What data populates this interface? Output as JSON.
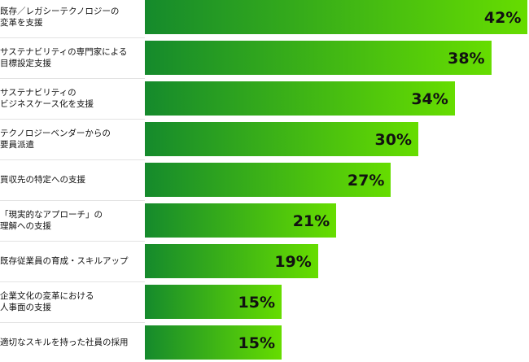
{
  "chart_data": {
    "type": "bar",
    "orientation": "horizontal",
    "categories": [
      "既存／レガシーテクノロジーの\n変革を支援",
      "サステナビリティの専門家による\n目標設定支援",
      "サステナビリティの\nビジネスケース化を支援",
      "テクノロジーベンダーからの\n要員派遣",
      "買収先の特定への支援",
      "「現実的なアプローチ」の\n理解への支援",
      "既存従業員の育成・スキルアップ",
      "企業文化の変革における\n人事面の支援",
      "適切なスキルを持った社員の採用"
    ],
    "values": [
      42,
      38,
      34,
      30,
      27,
      21,
      19,
      15,
      15
    ],
    "value_labels": [
      "42%",
      "38%",
      "34%",
      "30%",
      "27%",
      "21%",
      "19%",
      "15%",
      "15%"
    ],
    "color": [
      "#158a2c",
      "#66dd00"
    ]
  }
}
